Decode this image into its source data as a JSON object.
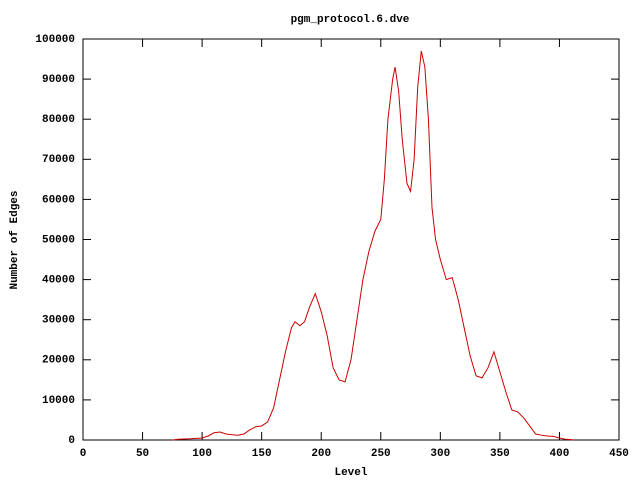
{
  "chart_data": {
    "type": "line",
    "title": "pgm_protocol.6.dve",
    "x_label": "Level",
    "y_label": "Number of Edges",
    "x": [
      75,
      80,
      90,
      100,
      105,
      110,
      115,
      120,
      125,
      130,
      135,
      140,
      145,
      150,
      155,
      160,
      165,
      170,
      175,
      178,
      182,
      186,
      190,
      195,
      200,
      205,
      210,
      215,
      220,
      225,
      230,
      235,
      240,
      245,
      250,
      253,
      256,
      260,
      262,
      265,
      268,
      272,
      275,
      278,
      281,
      284,
      287,
      290,
      293,
      296,
      300,
      305,
      310,
      315,
      320,
      325,
      330,
      335,
      340,
      345,
      350,
      355,
      360,
      365,
      370,
      375,
      380,
      385,
      390,
      395,
      400,
      405,
      410,
      412
    ],
    "series": [
      {
        "name": "",
        "color": "#cc0000",
        "values": [
          0,
          200,
          300,
          500,
          1000,
          1800,
          2000,
          1500,
          1300,
          1200,
          1500,
          2500,
          3300,
          3500,
          4500,
          8000,
          15000,
          22000,
          28000,
          29500,
          28500,
          29500,
          33000,
          36500,
          32000,
          26000,
          18000,
          15000,
          14500,
          20000,
          30000,
          40000,
          47000,
          52000,
          55000,
          65000,
          80000,
          90000,
          93000,
          87000,
          75000,
          64000,
          62000,
          70000,
          88000,
          97000,
          93000,
          80000,
          58000,
          50000,
          45000,
          40000,
          40500,
          35000,
          28000,
          21000,
          16000,
          15500,
          18000,
          22000,
          17000,
          12000,
          7500,
          7000,
          5500,
          3500,
          1500,
          1200,
          1000,
          900,
          500,
          200,
          100,
          0
        ]
      }
    ],
    "xlim": [
      0,
      450
    ],
    "xticks": [
      0,
      50,
      100,
      150,
      200,
      250,
      300,
      350,
      400,
      450
    ],
    "ylim": [
      0,
      100000
    ],
    "yticks": [
      0,
      10000,
      20000,
      30000,
      40000,
      50000,
      60000,
      70000,
      80000,
      90000,
      100000
    ],
    "grid": false
  }
}
